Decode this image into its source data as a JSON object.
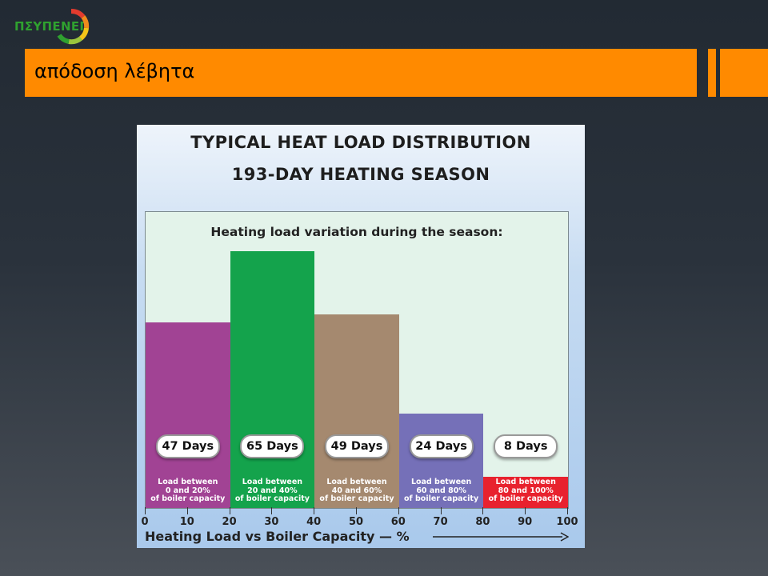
{
  "logo": {
    "text": "ΠΣΥΠΕΝΕΠ"
  },
  "slide": {
    "title": "απόδοση λέβητα"
  },
  "chart_data": {
    "type": "bar",
    "title": "TYPICAL HEAT LOAD DISTRIBUTION",
    "subtitle": "193-DAY HEATING SEASON",
    "plot_title": "Heating load variation during the season:",
    "xlabel": "Heating Load vs Boiler Capacity — %",
    "xlim": [
      0,
      100
    ],
    "x_ticks": [
      "0",
      "10",
      "20",
      "30",
      "40",
      "50",
      "60",
      "70",
      "80",
      "90",
      "100"
    ],
    "bins": [
      {
        "from": 0,
        "to": 20,
        "days": 47,
        "value_label": "47 Days",
        "label": [
          "Load between",
          "0 and 20%",
          "of boiler capacity"
        ],
        "color": "#a14394"
      },
      {
        "from": 20,
        "to": 40,
        "days": 65,
        "value_label": "65 Days",
        "label": [
          "Load between",
          "20 and 40%",
          "of boiler capacity"
        ],
        "color": "#14a34c"
      },
      {
        "from": 40,
        "to": 60,
        "days": 49,
        "value_label": "49 Days",
        "label": [
          "Load between",
          "40 and 60%",
          "of boiler capacity"
        ],
        "color": "#a5896f"
      },
      {
        "from": 60,
        "to": 80,
        "days": 24,
        "value_label": "24 Days",
        "label": [
          "Load between",
          "60 and 80%",
          "of boiler capacity"
        ],
        "color": "#7570b8"
      },
      {
        "from": 80,
        "to": 100,
        "days": 8,
        "value_label": "8 Days",
        "label": [
          "Load between",
          "80 and 100%",
          "of boiler capacity"
        ],
        "color": "#e8222e"
      }
    ],
    "ylim": [
      0,
      75
    ],
    "grid": false
  }
}
